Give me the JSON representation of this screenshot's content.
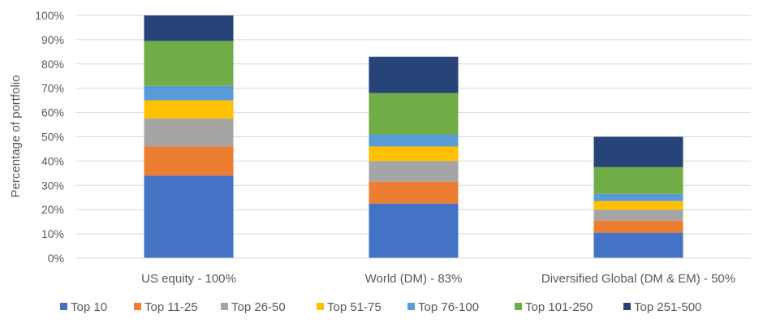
{
  "chart_data": {
    "type": "bar",
    "stacked": true,
    "title": "",
    "xlabel": "",
    "ylabel": "Percentage of portfolio",
    "ylim": [
      0,
      100
    ],
    "yticks": [
      "0%",
      "10%",
      "20%",
      "30%",
      "40%",
      "50%",
      "60%",
      "70%",
      "80%",
      "90%",
      "100%"
    ],
    "categories": [
      "US equity - 100%",
      "World (DM) - 83%",
      "Diversified Global (DM & EM) - 50%"
    ],
    "legend_position": "bottom",
    "series": [
      {
        "name": "Top 10",
        "color": "#4472C4",
        "values": [
          34,
          22.5,
          10.5
        ]
      },
      {
        "name": "Top 11-25",
        "color": "#ED7D31",
        "values": [
          12,
          9,
          5
        ]
      },
      {
        "name": "Top 26-50",
        "color": "#A5A5A5",
        "values": [
          11.5,
          8.5,
          4.5
        ]
      },
      {
        "name": "Top 51-75",
        "color": "#FFC000",
        "values": [
          7.5,
          6,
          3.5
        ]
      },
      {
        "name": "Top 76-100",
        "color": "#5B9BD5",
        "values": [
          6,
          5,
          3
        ]
      },
      {
        "name": "Top 101-250",
        "color": "#70AD47",
        "values": [
          18.5,
          17,
          11
        ]
      },
      {
        "name": "Top 251-500",
        "color": "#264478",
        "values": [
          10.5,
          15,
          12.5
        ]
      }
    ]
  }
}
